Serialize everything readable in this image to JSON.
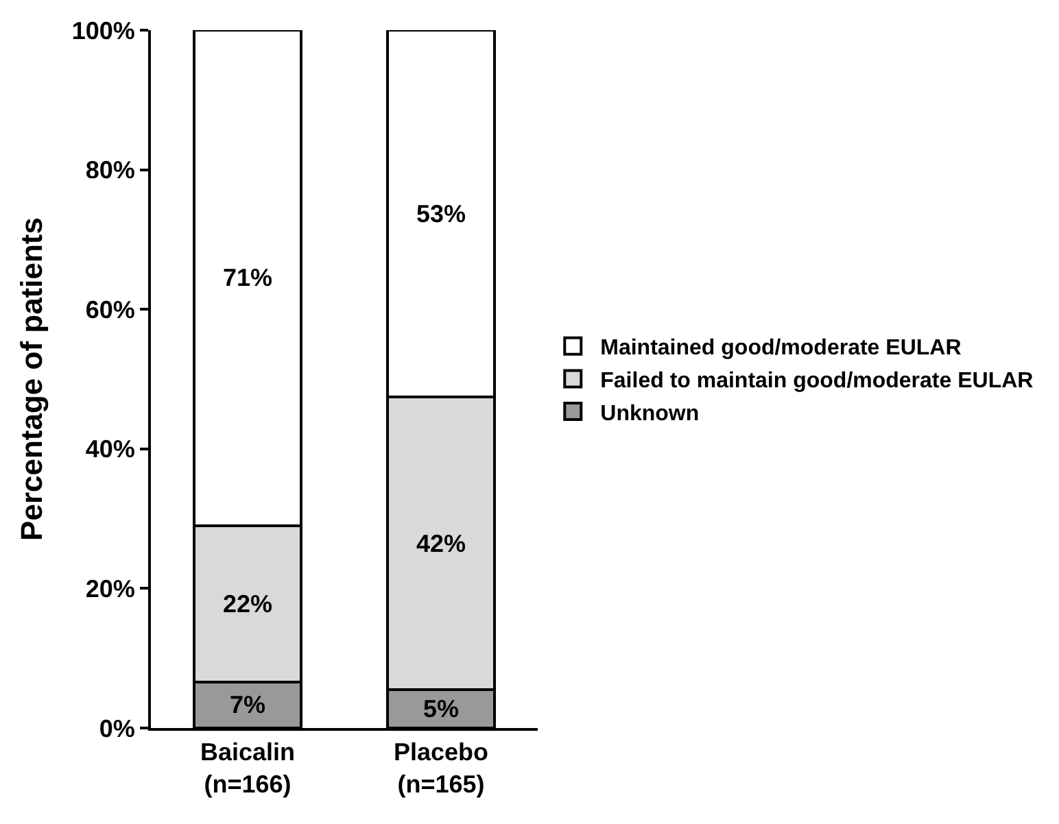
{
  "chart_data": {
    "type": "bar",
    "stacked": true,
    "ylabel": "Percentage of patients",
    "categories": [
      "Baicalin\n(n=166)",
      "Placebo\n(n=165)"
    ],
    "series": [
      {
        "name": "Unknown",
        "color": "#999999",
        "values": [
          6.6,
          5.5
        ],
        "value_labels": [
          "7%",
          "5%"
        ]
      },
      {
        "name": "Failed to maintain good/moderate EULAR",
        "color": "#d9d9d9",
        "values": [
          22.4,
          41.9
        ],
        "value_labels": [
          "22%",
          "42%"
        ]
      },
      {
        "name": "Maintained good/moderate EULAR",
        "color": "#ffffff",
        "values": [
          71.0,
          52.6
        ],
        "value_labels": [
          "71%",
          "53%"
        ]
      }
    ],
    "ylim": [
      0,
      100
    ],
    "yticks": [
      {
        "value": 0,
        "label": "0%"
      },
      {
        "value": 20,
        "label": "20%"
      },
      {
        "value": 40,
        "label": "40%"
      },
      {
        "value": 60,
        "label": "60%"
      },
      {
        "value": 80,
        "label": "80%"
      },
      {
        "value": 100,
        "label": "100%"
      }
    ],
    "legend": "right"
  }
}
